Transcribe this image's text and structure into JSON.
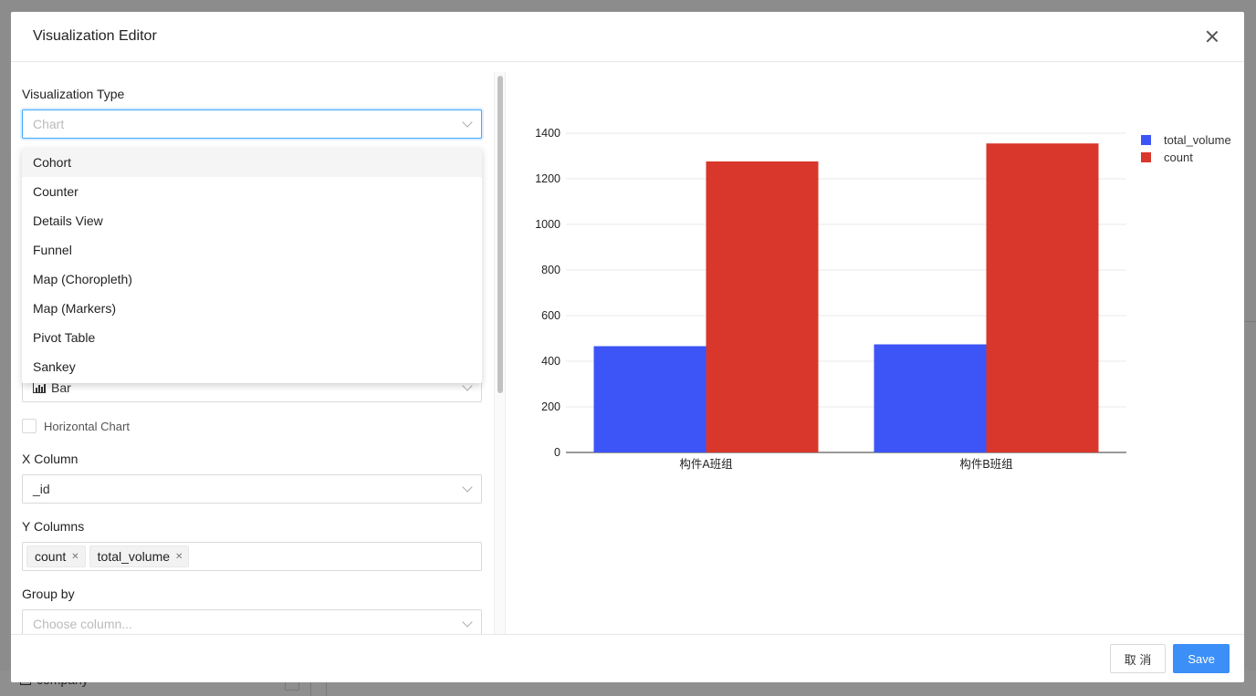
{
  "modal": {
    "title": "Visualization Editor",
    "close_label": "X",
    "footer": {
      "cancel_label": "取 消",
      "save_label": "Save"
    }
  },
  "form": {
    "viz_type": {
      "label": "Visualization Type",
      "placeholder": "Chart"
    },
    "dropdown_options": [
      "Cohort",
      "Counter",
      "Details View",
      "Funnel",
      "Map (Choropleth)",
      "Map (Markers)",
      "Pivot Table",
      "Sankey"
    ],
    "dropdown_active": "Cohort",
    "chart_type": {
      "value": "Bar",
      "icon": "bar-chart-icon"
    },
    "horizontal": {
      "label": "Horizontal Chart",
      "checked": false
    },
    "x_column": {
      "label": "X Column",
      "value": "_id"
    },
    "y_columns": {
      "label": "Y Columns",
      "tags": [
        "count",
        "total_volume"
      ]
    },
    "group_by": {
      "label": "Group by",
      "placeholder": "Choose column..."
    }
  },
  "background": {
    "item_label": "company"
  },
  "chart_data": {
    "type": "bar",
    "categories": [
      "构件A班组",
      "构件B班组"
    ],
    "series": [
      {
        "name": "total_volume",
        "values": [
          466,
          474
        ],
        "color": "#3d54f6"
      },
      {
        "name": "count",
        "values": [
          1276,
          1355
        ],
        "color": "#d9372b"
      }
    ],
    "yticks": [
      0,
      200,
      400,
      600,
      800,
      1000,
      1200,
      1400
    ],
    "ylim": [
      0,
      1400
    ],
    "legend": "top-right",
    "grid": true
  }
}
